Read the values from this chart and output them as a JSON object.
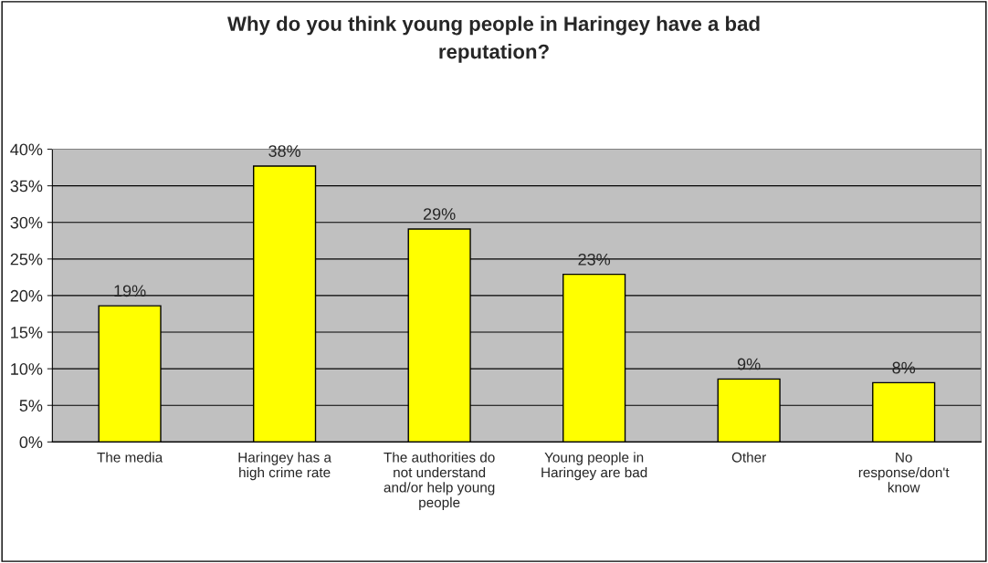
{
  "chart_data": {
    "type": "bar",
    "title": "Why do you think young people in Haringey have a bad\nreputation?",
    "categories": [
      "The media",
      "Haringey has a\nhigh crime rate",
      "The authorities do\nnot understand\nand/or help young\npeople",
      "Young people in\nHaringey are bad",
      "Other",
      "No\nresponse/don't\nknow"
    ],
    "values": [
      18.6,
      37.7,
      29.1,
      22.9,
      8.6,
      8.1
    ],
    "value_labels": [
      "19%",
      "38%",
      "29%",
      "23%",
      "9%",
      "8%"
    ],
    "color": "#ffff00",
    "ylim": [
      0,
      40
    ],
    "yticks": [
      {
        "value": 0,
        "label": "0%"
      },
      {
        "value": 5,
        "label": "5%"
      },
      {
        "value": 10,
        "label": "10%"
      },
      {
        "value": 15,
        "label": "15%"
      },
      {
        "value": 20,
        "label": "20%"
      },
      {
        "value": 25,
        "label": "25%"
      },
      {
        "value": 30,
        "label": "30%"
      },
      {
        "value": 35,
        "label": "35%"
      },
      {
        "value": 40,
        "label": "40%"
      }
    ],
    "grid": "y",
    "legend": false
  }
}
